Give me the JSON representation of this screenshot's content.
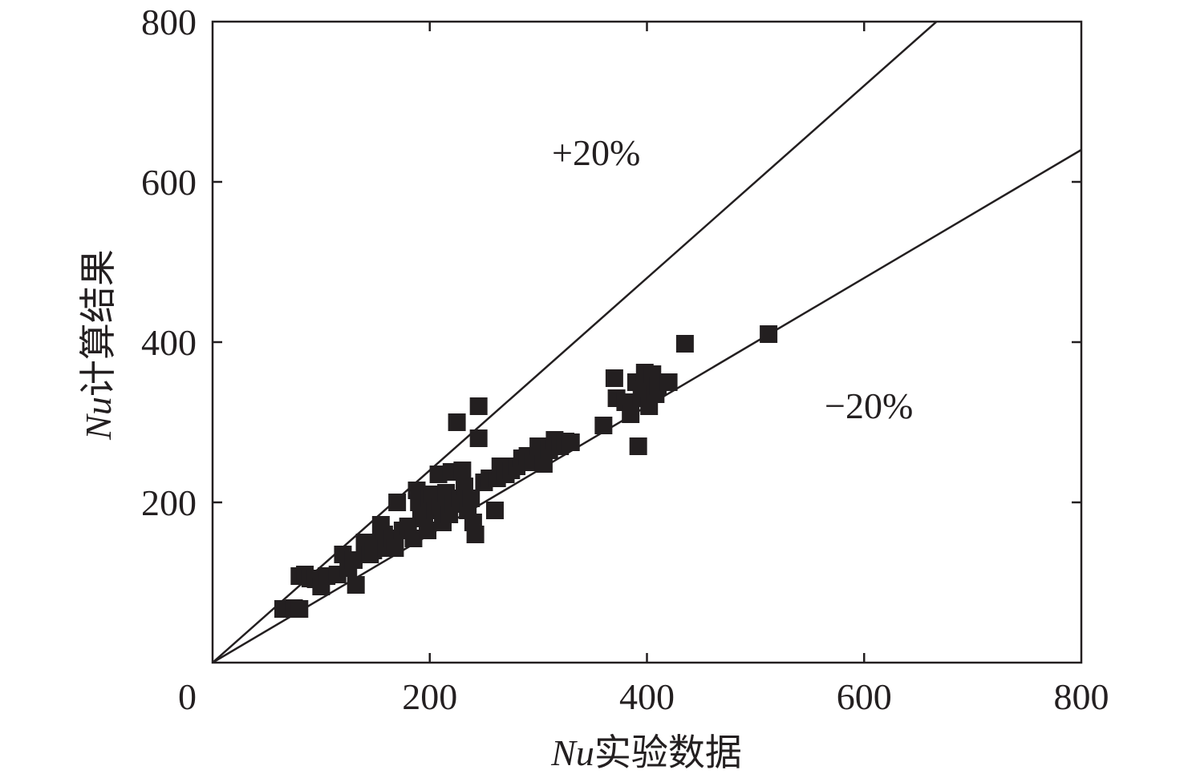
{
  "chart_data": {
    "type": "scatter",
    "title": "",
    "xlabel": {
      "italic": "Nu",
      "text": "实验数据"
    },
    "ylabel": {
      "italic": "Nu",
      "text": "计算结果"
    },
    "xlim": [
      0,
      800
    ],
    "ylim": [
      0,
      800
    ],
    "x_ticks": [
      "0",
      "200",
      "400",
      "600",
      "800"
    ],
    "y_ticks": [
      "200",
      "400",
      "600",
      "800"
    ],
    "grid": false,
    "legend": "none",
    "reference_lines": [
      {
        "label": "+20%",
        "slope": 1.2
      },
      {
        "label": "−20%",
        "slope": 0.8
      }
    ],
    "points": [
      [
        65,
        67
      ],
      [
        70,
        67
      ],
      [
        75,
        68
      ],
      [
        80,
        67
      ],
      [
        80,
        108
      ],
      [
        85,
        110
      ],
      [
        90,
        105
      ],
      [
        95,
        104
      ],
      [
        100,
        95
      ],
      [
        105,
        108
      ],
      [
        115,
        110
      ],
      [
        120,
        135
      ],
      [
        125,
        118
      ],
      [
        130,
        128
      ],
      [
        132,
        97
      ],
      [
        140,
        150
      ],
      [
        145,
        135
      ],
      [
        148,
        140
      ],
      [
        150,
        150
      ],
      [
        155,
        172
      ],
      [
        158,
        160
      ],
      [
        160,
        143
      ],
      [
        165,
        155
      ],
      [
        168,
        143
      ],
      [
        170,
        200
      ],
      [
        175,
        165
      ],
      [
        180,
        170
      ],
      [
        185,
        155
      ],
      [
        188,
        215
      ],
      [
        190,
        200
      ],
      [
        192,
        185
      ],
      [
        195,
        180
      ],
      [
        198,
        165
      ],
      [
        200,
        205
      ],
      [
        203,
        210
      ],
      [
        205,
        190
      ],
      [
        208,
        235
      ],
      [
        210,
        195
      ],
      [
        212,
        175
      ],
      [
        215,
        212
      ],
      [
        218,
        185
      ],
      [
        220,
        238
      ],
      [
        222,
        198
      ],
      [
        225,
        300
      ],
      [
        228,
        205
      ],
      [
        230,
        240
      ],
      [
        232,
        220
      ],
      [
        235,
        190
      ],
      [
        238,
        205
      ],
      [
        240,
        175
      ],
      [
        242,
        160
      ],
      [
        245,
        320
      ],
      [
        245,
        280
      ],
      [
        250,
        225
      ],
      [
        255,
        230
      ],
      [
        260,
        190
      ],
      [
        262,
        230
      ],
      [
        265,
        245
      ],
      [
        270,
        235
      ],
      [
        275,
        240
      ],
      [
        280,
        245
      ],
      [
        285,
        255
      ],
      [
        290,
        258
      ],
      [
        295,
        250
      ],
      [
        300,
        270
      ],
      [
        305,
        248
      ],
      [
        310,
        265
      ],
      [
        315,
        278
      ],
      [
        320,
        270
      ],
      [
        325,
        276
      ],
      [
        330,
        275
      ],
      [
        360,
        296
      ],
      [
        370,
        355
      ],
      [
        372,
        330
      ],
      [
        380,
        325
      ],
      [
        385,
        310
      ],
      [
        390,
        350
      ],
      [
        392,
        270
      ],
      [
        395,
        330
      ],
      [
        398,
        362
      ],
      [
        400,
        340
      ],
      [
        402,
        320
      ],
      [
        405,
        360
      ],
      [
        408,
        335
      ],
      [
        410,
        345
      ],
      [
        420,
        350
      ],
      [
        435,
        398
      ],
      [
        512,
        410
      ]
    ],
    "colors": {
      "marker": "#231f20",
      "line": "#231f20",
      "axis": "#231f20"
    }
  }
}
